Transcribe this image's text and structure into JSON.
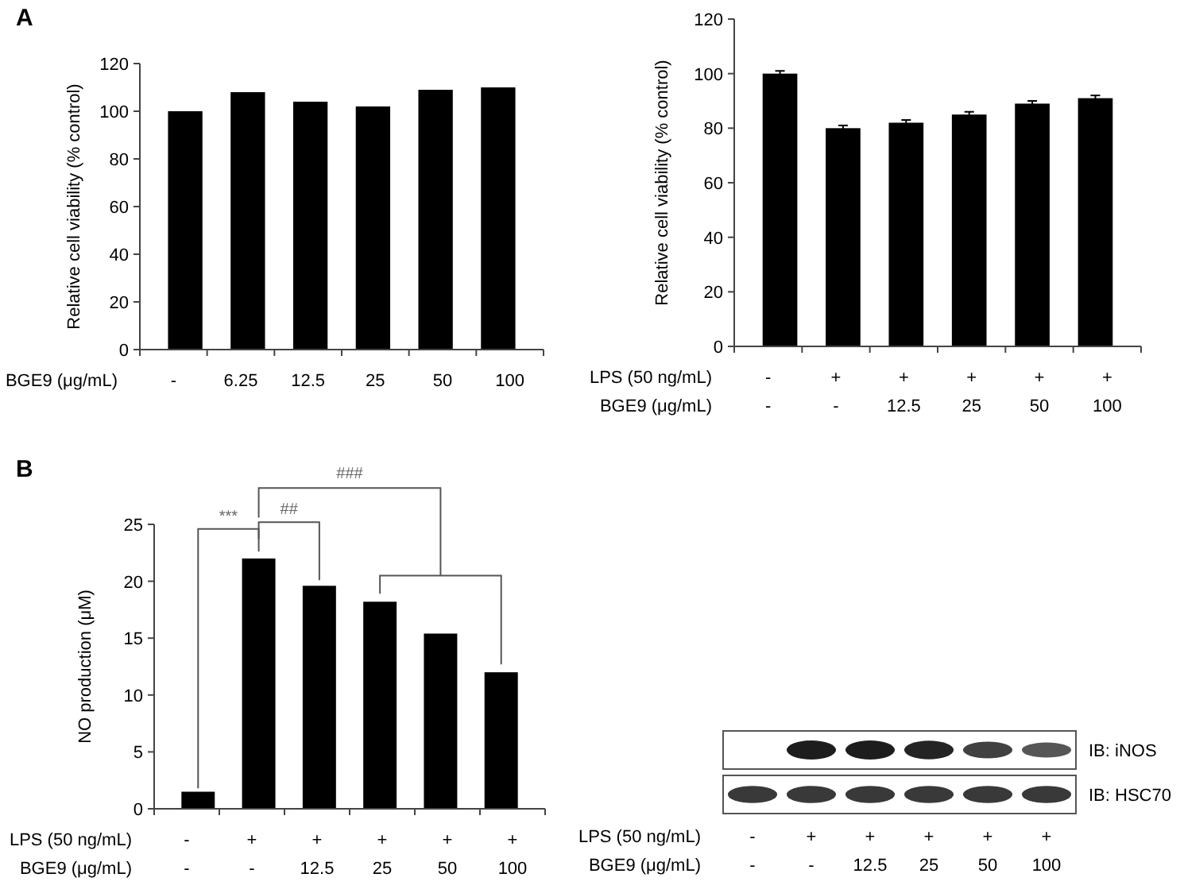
{
  "chart_data": [
    {
      "type": "bar",
      "categories": [
        "-",
        "6.25",
        "12.5",
        "25",
        "50",
        "100"
      ],
      "values": [
        100,
        108,
        104,
        102,
        109,
        110
      ],
      "color": "#000000",
      "ylabel": "Relative cell viability (% control)",
      "xlabel": "BGE9  (μg/mL)",
      "ylim": [
        0,
        120
      ],
      "yticks": [
        0,
        20,
        40,
        60,
        80,
        100,
        120
      ],
      "annotations": [
        "A"
      ]
    },
    {
      "type": "bar",
      "categories": [
        "-\n-",
        "+\n-",
        "+\n12.5",
        "+\n25",
        "+\n50",
        "+\n100"
      ],
      "values": [
        100,
        80,
        82,
        85,
        89,
        91
      ],
      "errors": [
        1,
        1,
        1,
        1,
        1,
        1
      ],
      "color": "#000000",
      "ylabel": "Relative cell viability (% control)",
      "xlabel": "LPS  (50  ng/mL)\nBGE9  (μg/mL)",
      "ylim": [
        0,
        120
      ],
      "yticks": [
        0,
        20,
        40,
        60,
        80,
        100,
        120
      ]
    },
    {
      "type": "bar",
      "categories": [
        "-\n-",
        "+\n-",
        "+\n12.5",
        "+\n25",
        "+\n50",
        "+\n100"
      ],
      "values": [
        1.5,
        22,
        19.6,
        18.2,
        15.4,
        12
      ],
      "color": "#000000",
      "ylabel": "NO production (μM)",
      "xlabel": "LPS  (50  ng/mL)\nBGE9  (μg/mL)",
      "ylim": [
        0,
        25
      ],
      "yticks": [
        0,
        5,
        10,
        15,
        20,
        25
      ],
      "annotations": [
        "B",
        "***",
        "##",
        "###"
      ]
    },
    {
      "type": "other",
      "categories": [
        "-\n-",
        "+\n-",
        "+\n12.5",
        "+\n25",
        "+\n50",
        "+\n100"
      ],
      "xlabel": "LPS  (50  ng/mL)\nBGE9  (μg/mL)",
      "annotations": [
        "IB:  iNOS",
        "IB:  HSC70"
      ]
    }
  ]
}
